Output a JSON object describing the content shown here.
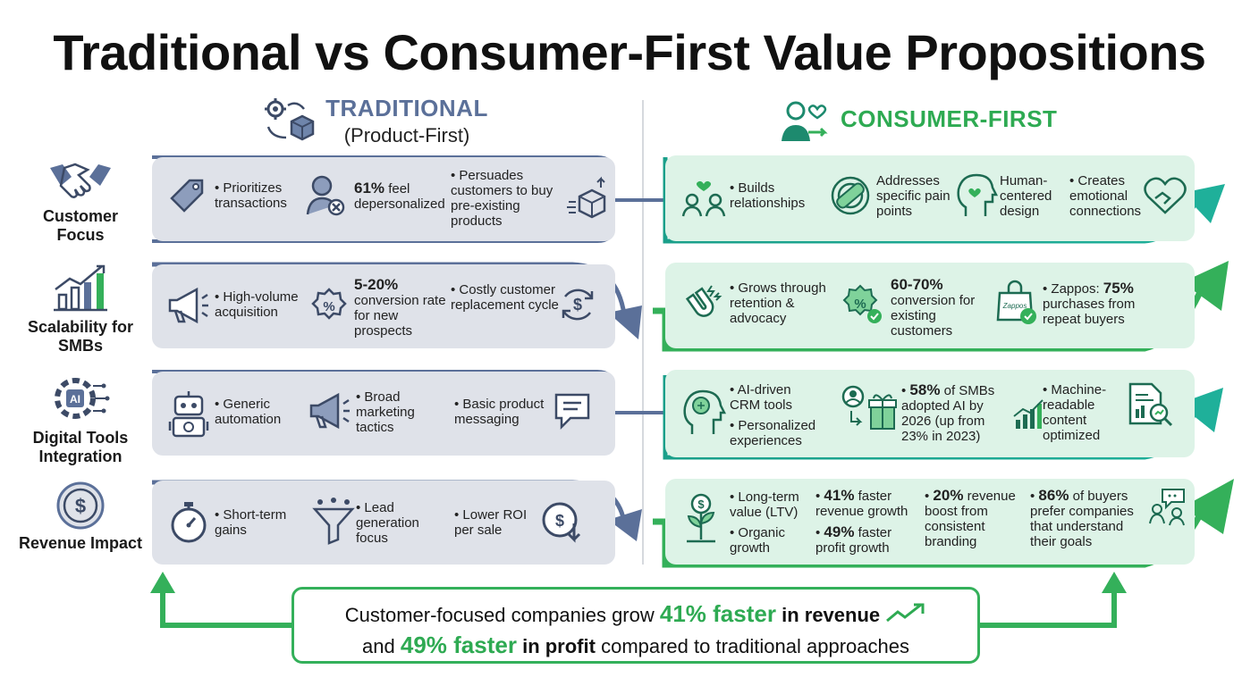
{
  "title": "Traditional vs Consumer-First Value Propositions",
  "columns": {
    "traditional": {
      "title": "TRADITIONAL",
      "subtitle": "(Product-First)"
    },
    "consumer_first": {
      "title": "CONSUMER-FIRST"
    }
  },
  "rows": [
    {
      "label": "Customer Focus"
    },
    {
      "label": "Scalability for SMBs"
    },
    {
      "label": "Digital Tools Integration"
    },
    {
      "label": "Revenue Impact"
    }
  ],
  "traditional": {
    "r1": {
      "a": "Prioritizes transactions",
      "b_num": "61%",
      "b_text": "feel depersonalized",
      "c": "Persuades customers to buy pre-existing products"
    },
    "r2": {
      "a": "High-volume acquisition",
      "b_num": "5-20%",
      "b_text": "conversion rate for new prospects",
      "c": "Costly customer replacement cycle"
    },
    "r3": {
      "a": "Generic automation",
      "b": "Broad marketing tactics",
      "c": "Basic product messaging"
    },
    "r4": {
      "a": "Short-term gains",
      "b": "Lead generation focus",
      "c": "Lower ROI per sale"
    }
  },
  "consumer": {
    "r1": {
      "a": "Builds relationships",
      "b": "Addresses specific pain points",
      "c": "Human-centered design",
      "d": "Creates emotional connections"
    },
    "r2": {
      "a": "Grows through retention & advocacy",
      "b_num": "60-70%",
      "b_text": "conversion for existing customers",
      "c_pre": "Zappos:",
      "c_num": "75%",
      "c_text": "purchases from repeat buyers",
      "bag_label": "Zappos"
    },
    "r3": {
      "a1": "AI-driven CRM tools",
      "a2": "Personalized experiences",
      "b_num": "58%",
      "b_text": "of SMBs adopted AI by 2026 (up from 23% in 2023)",
      "c": "Machine-readable content optimized",
      "ai_chip": "AI"
    },
    "r4": {
      "a1": "Long-term value (LTV)",
      "a2": "Organic growth",
      "b1_num": "41%",
      "b1_text": "faster revenue growth",
      "b2_num": "49%",
      "b2_text": "faster profit growth",
      "c_num": "20%",
      "c_text": "revenue boost from consistent branding",
      "d_num": "86%",
      "d_text": "of buyers prefer companies that understand their goals"
    }
  },
  "footer": {
    "l1_pre": "Customer-focused companies grow",
    "l1_num": "41% faster",
    "l1_post": "in revenue",
    "l2_pre": "and",
    "l2_num": "49% faster",
    "l2_bold": "in profit",
    "l2_post": "compared to traditional approaches"
  },
  "colors": {
    "navy": "#5b7099",
    "green": "#2eaa52",
    "teal": "#1a9f8a",
    "trad_bg": "#dfe2e9",
    "cons_bg": "#ddf3e7"
  }
}
